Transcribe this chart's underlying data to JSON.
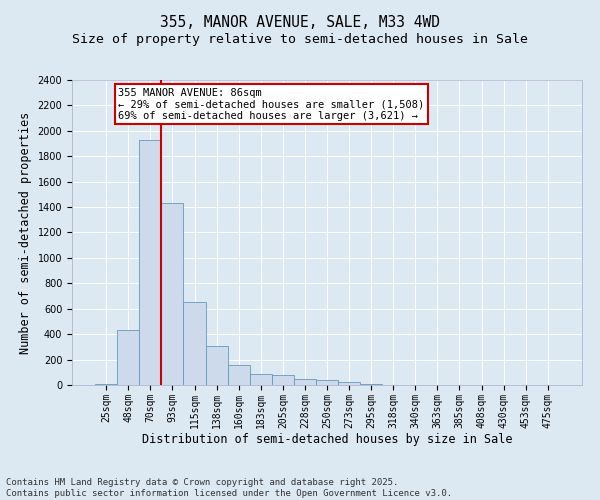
{
  "title": "355, MANOR AVENUE, SALE, M33 4WD",
  "subtitle": "Size of property relative to semi-detached houses in Sale",
  "xlabel": "Distribution of semi-detached houses by size in Sale",
  "ylabel": "Number of semi-detached properties",
  "categories": [
    "25sqm",
    "48sqm",
    "70sqm",
    "93sqm",
    "115sqm",
    "138sqm",
    "160sqm",
    "183sqm",
    "205sqm",
    "228sqm",
    "250sqm",
    "273sqm",
    "295sqm",
    "318sqm",
    "340sqm",
    "363sqm",
    "385sqm",
    "408sqm",
    "430sqm",
    "453sqm",
    "475sqm"
  ],
  "values": [
    10,
    430,
    1930,
    1430,
    650,
    310,
    160,
    90,
    80,
    50,
    40,
    20,
    10,
    0,
    0,
    0,
    0,
    0,
    0,
    0,
    0
  ],
  "bar_color": "#ccdaeb",
  "bar_edge_color": "#6699bb",
  "vline_color": "#cc0000",
  "vline_x": 2.5,
  "annotation_text": "355 MANOR AVENUE: 86sqm\n← 29% of semi-detached houses are smaller (1,508)\n69% of semi-detached houses are larger (3,621) →",
  "annotation_box_facecolor": "#ffffff",
  "annotation_border_color": "#cc0000",
  "ylim": [
    0,
    2400
  ],
  "yticks": [
    0,
    200,
    400,
    600,
    800,
    1000,
    1200,
    1400,
    1600,
    1800,
    2000,
    2200,
    2400
  ],
  "footer": "Contains HM Land Registry data © Crown copyright and database right 2025.\nContains public sector information licensed under the Open Government Licence v3.0.",
  "background_color": "#dce8f2",
  "plot_background_color": "#dce8f2",
  "grid_color": "#ffffff",
  "title_fontsize": 10.5,
  "subtitle_fontsize": 9.5,
  "axis_label_fontsize": 8.5,
  "tick_fontsize": 7,
  "annotation_fontsize": 7.5,
  "footer_fontsize": 6.5
}
